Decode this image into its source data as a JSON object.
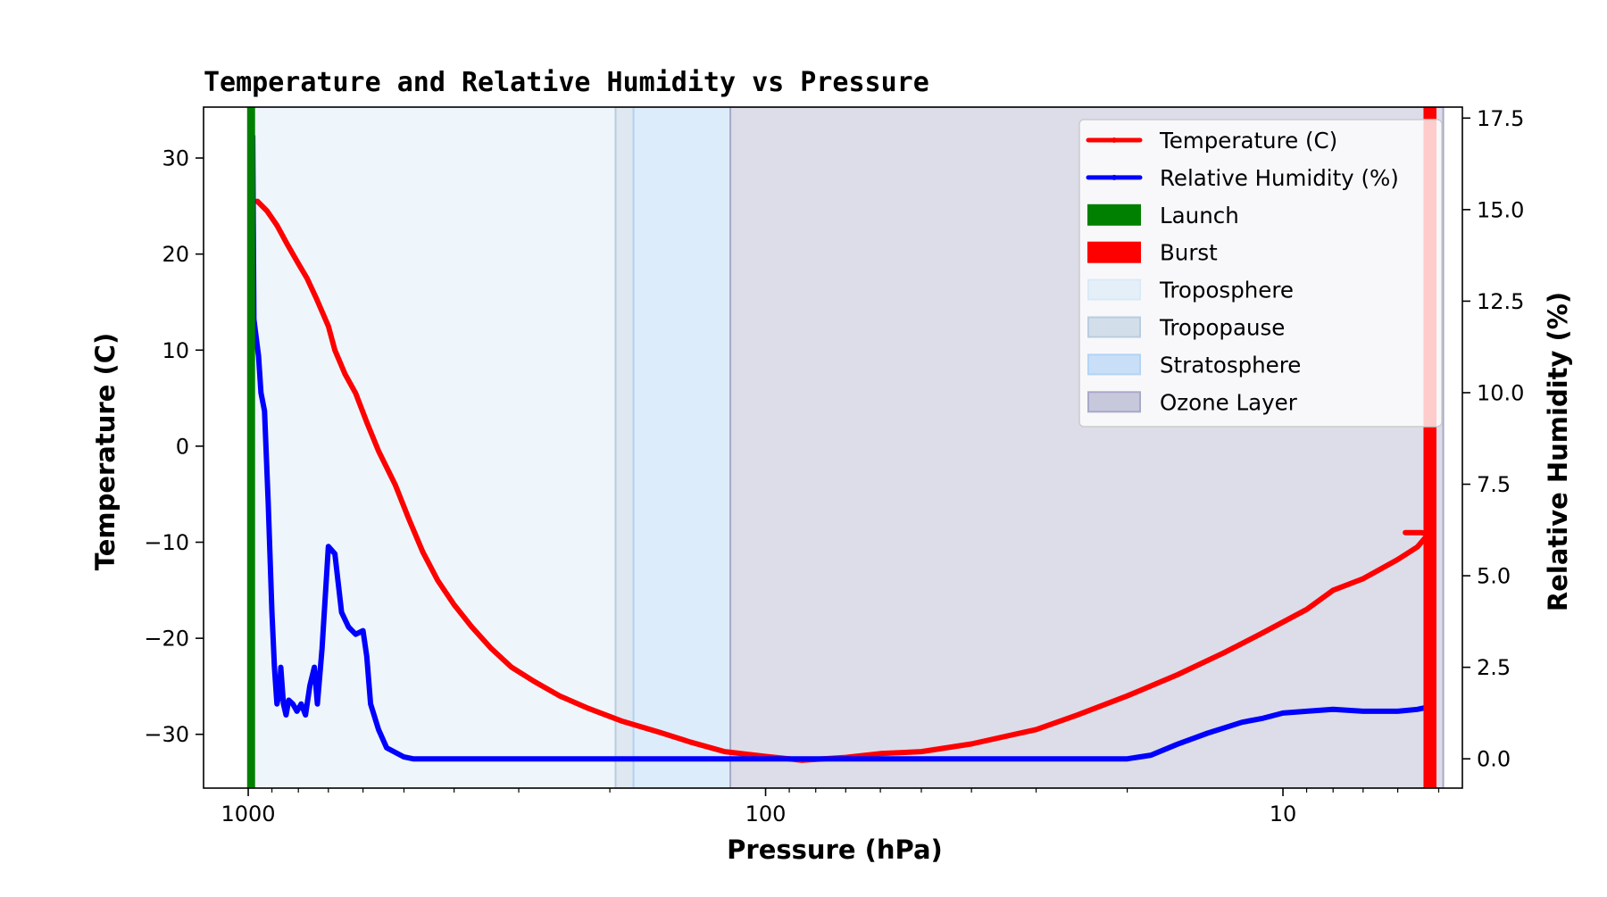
{
  "chart_data": {
    "type": "line",
    "title": "Temperature and Relative Humidity vs Pressure",
    "xlabel": "Pressure (hPa)",
    "ylabel": "Temperature (C)",
    "y2label": "Relative Humidity (%)",
    "xscale": "log",
    "x_inverted": true,
    "xlim": [
      1220,
      4.5
    ],
    "ylim": [
      -35.6,
      35.3
    ],
    "y2lim": [
      -0.8,
      17.8
    ],
    "x_ticks": [
      {
        "value": 1000,
        "label": "1000"
      },
      {
        "value": 100,
        "label": "100"
      },
      {
        "value": 10,
        "label": "10"
      }
    ],
    "y_ticks": [
      {
        "value": 30,
        "label": "30"
      },
      {
        "value": 20,
        "label": "20"
      },
      {
        "value": 10,
        "label": "10"
      },
      {
        "value": 0,
        "label": "0"
      },
      {
        "value": -10,
        "label": "−10"
      },
      {
        "value": -20,
        "label": "−20"
      },
      {
        "value": -30,
        "label": "−30"
      }
    ],
    "y2_ticks": [
      {
        "value": 0,
        "label": "0.0"
      },
      {
        "value": 2.5,
        "label": "2.5"
      },
      {
        "value": 5,
        "label": "5.0"
      },
      {
        "value": 7.5,
        "label": "7.5"
      },
      {
        "value": 10,
        "label": "10.0"
      },
      {
        "value": 12.5,
        "label": "12.5"
      },
      {
        "value": 15,
        "label": "15.0"
      },
      {
        "value": 17.5,
        "label": "17.5"
      }
    ],
    "grid": false,
    "legend_position": "upper-right",
    "series": [
      {
        "name": "Temperature (C)",
        "axis": "left",
        "color": "#ff0000",
        "points": [
          [
            960,
            25.5
          ],
          [
            920,
            24.5
          ],
          [
            880,
            23
          ],
          [
            840,
            21
          ],
          [
            800,
            19
          ],
          [
            770,
            17.5
          ],
          [
            740,
            15.5
          ],
          [
            700,
            12.5
          ],
          [
            680,
            10
          ],
          [
            650,
            7.5
          ],
          [
            620,
            5.5
          ],
          [
            590,
            2.5
          ],
          [
            560,
            -0.5
          ],
          [
            520,
            -4
          ],
          [
            490,
            -7.5
          ],
          [
            460,
            -11
          ],
          [
            430,
            -14
          ],
          [
            400,
            -16.5
          ],
          [
            370,
            -18.8
          ],
          [
            340,
            -21
          ],
          [
            310,
            -23
          ],
          [
            280,
            -24.5
          ],
          [
            250,
            -26
          ],
          [
            220,
            -27.3
          ],
          [
            190,
            -28.6
          ],
          [
            160,
            -29.8
          ],
          [
            140,
            -30.8
          ],
          [
            120,
            -31.8
          ],
          [
            100,
            -32.3
          ],
          [
            85,
            -32.7
          ],
          [
            70,
            -32.4
          ],
          [
            60,
            -32
          ],
          [
            50,
            -31.8
          ],
          [
            40,
            -31
          ],
          [
            30,
            -29.5
          ],
          [
            25,
            -28
          ],
          [
            20,
            -26
          ],
          [
            16,
            -23.8
          ],
          [
            13,
            -21.5
          ],
          [
            11,
            -19.5
          ],
          [
            9,
            -17
          ],
          [
            8,
            -15
          ],
          [
            7,
            -13.8
          ],
          [
            6,
            -11.8
          ],
          [
            5.5,
            -10.5
          ],
          [
            5.3,
            -9.5
          ],
          [
            5.2,
            -9.2
          ],
          [
            5.4,
            -9
          ],
          [
            5.8,
            -9
          ]
        ]
      },
      {
        "name": "Relative Humidity (%)",
        "axis": "right",
        "color": "#0000ff",
        "points": [
          [
            980,
            17
          ],
          [
            975,
            12
          ],
          [
            965,
            11.5
          ],
          [
            955,
            11
          ],
          [
            945,
            10
          ],
          [
            930,
            9.5
          ],
          [
            915,
            7
          ],
          [
            900,
            4
          ],
          [
            890,
            2.5
          ],
          [
            880,
            1.5
          ],
          [
            870,
            1.8
          ],
          [
            865,
            2.5
          ],
          [
            855,
            1.5
          ],
          [
            845,
            1.2
          ],
          [
            835,
            1.6
          ],
          [
            820,
            1.5
          ],
          [
            805,
            1.3
          ],
          [
            790,
            1.5
          ],
          [
            775,
            1.2
          ],
          [
            760,
            2
          ],
          [
            745,
            2.5
          ],
          [
            735,
            1.5
          ],
          [
            720,
            3
          ],
          [
            700,
            5.8
          ],
          [
            680,
            5.6
          ],
          [
            660,
            4
          ],
          [
            640,
            3.6
          ],
          [
            620,
            3.4
          ],
          [
            600,
            3.5
          ],
          [
            590,
            2.8
          ],
          [
            580,
            1.5
          ],
          [
            560,
            0.8
          ],
          [
            540,
            0.3
          ],
          [
            500,
            0.05
          ],
          [
            480,
            0
          ],
          [
            400,
            0
          ],
          [
            300,
            0
          ],
          [
            200,
            0
          ],
          [
            100,
            0
          ],
          [
            50,
            0
          ],
          [
            30,
            0
          ],
          [
            20,
            0
          ],
          [
            18,
            0.1
          ],
          [
            16,
            0.4
          ],
          [
            14,
            0.7
          ],
          [
            12,
            1
          ],
          [
            11,
            1.1
          ],
          [
            10,
            1.25
          ],
          [
            9,
            1.3
          ],
          [
            8,
            1.35
          ],
          [
            7,
            1.3
          ],
          [
            6.5,
            1.3
          ],
          [
            6,
            1.3
          ],
          [
            5.5,
            1.35
          ],
          [
            5.3,
            1.4
          ]
        ]
      }
    ],
    "regions": [
      {
        "name": "Troposphere",
        "from": 980,
        "to": 195,
        "color": "#d9eaf7",
        "opacity": 0.45
      },
      {
        "name": "Tropopause",
        "from": 195,
        "to": 180,
        "color": "#b9cde0",
        "opacity": 0.45
      },
      {
        "name": "Stratosphere",
        "from": 180,
        "to": 117,
        "color": "#b3d4f5",
        "opacity": 0.45
      },
      {
        "name": "Ozone Layer",
        "from": 117,
        "to": 4.9,
        "color": "#a7a9c8",
        "opacity": 0.4
      }
    ],
    "markers": [
      {
        "name": "Launch",
        "from": 1005,
        "to": 970,
        "color": "#008000"
      },
      {
        "name": "Burst",
        "from": 5.35,
        "to": 5.05,
        "color": "#ff0000"
      }
    ],
    "legend": [
      {
        "label": "Temperature (C)",
        "kind": "line",
        "color": "#ff0000"
      },
      {
        "label": "Relative Humidity (%)",
        "kind": "line",
        "color": "#0000ff"
      },
      {
        "label": "Launch",
        "kind": "patch",
        "color": "#008000",
        "opacity": 1
      },
      {
        "label": "Burst",
        "kind": "patch",
        "color": "#ff0000",
        "opacity": 1
      },
      {
        "label": "Troposphere",
        "kind": "patch",
        "color": "#d9eaf7",
        "opacity": 0.6
      },
      {
        "label": "Tropopause",
        "kind": "patch",
        "color": "#b9cde0",
        "opacity": 0.6
      },
      {
        "label": "Stratosphere",
        "kind": "patch",
        "color": "#b3d4f5",
        "opacity": 0.7
      },
      {
        "label": "Ozone Layer",
        "kind": "patch",
        "color": "#a7a9c8",
        "opacity": 0.6
      }
    ]
  }
}
